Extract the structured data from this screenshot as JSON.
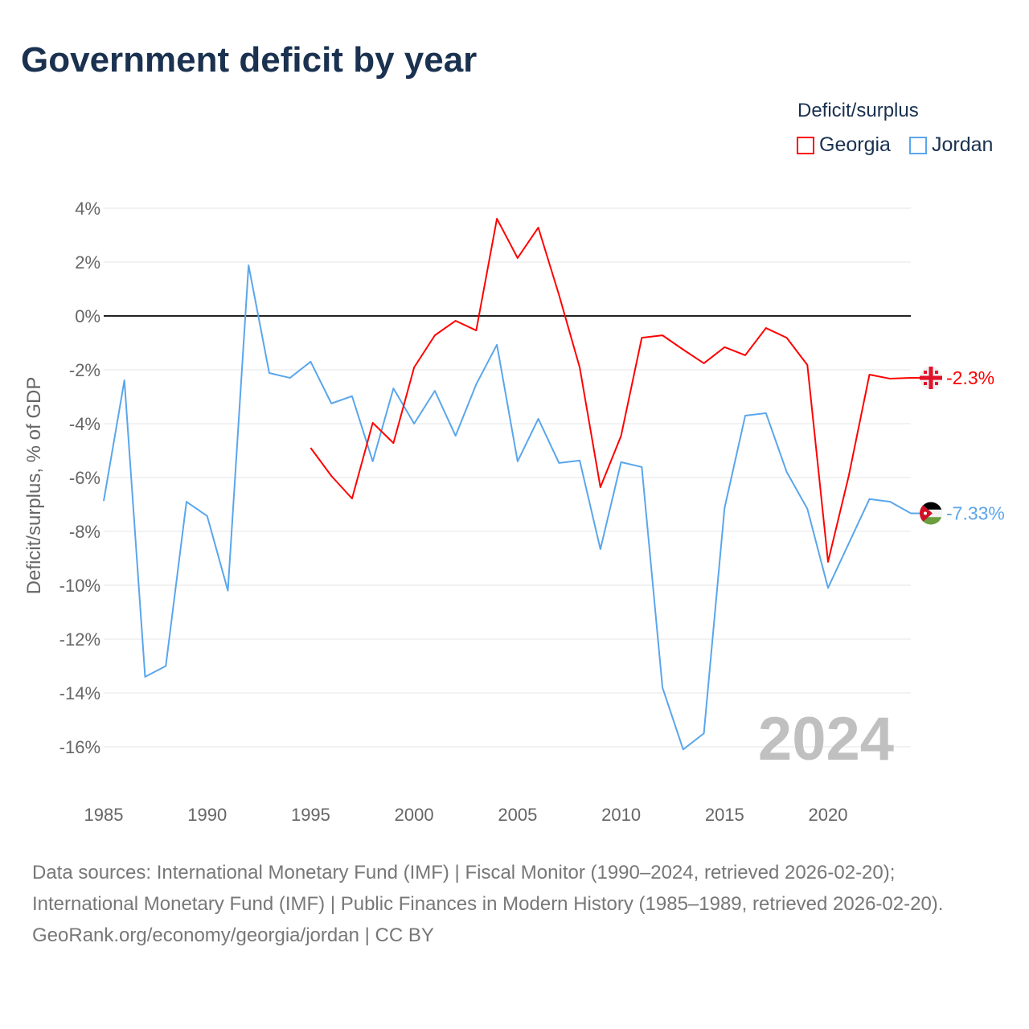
{
  "title": "Government deficit by year",
  "legend": {
    "title": "Deficit/surplus",
    "items": [
      {
        "name": "Georgia",
        "color": "#ff0000"
      },
      {
        "name": "Jordan",
        "color": "#5aa6ec"
      }
    ]
  },
  "sources": {
    "line1": "Data sources: International Monetary Fund (IMF) | Fiscal Monitor (1990–2024, retrieved 2026-02-20); International Monetary Fund (IMF) | Public Finances in Modern History (1985–1989, retrieved 2026-02-20).",
    "line2": "GeoRank.org/economy/georgia/jordan | CC BY"
  },
  "chart_data": {
    "type": "line",
    "title": "Government deficit by year",
    "xlabel": "",
    "ylabel": "Deficit/surplus, % of GDP",
    "xlim": [
      1985,
      2024
    ],
    "ylim": [
      -17,
      4
    ],
    "xticks": [
      1985,
      1990,
      1995,
      2000,
      2005,
      2010,
      2015,
      2020
    ],
    "yticks": [
      4,
      2,
      0,
      -2,
      -4,
      -6,
      -8,
      -10,
      -12,
      -14,
      -16
    ],
    "ytick_labels": [
      "4%",
      "2%",
      "0%",
      "-2%",
      "-4%",
      "-6%",
      "-8%",
      "-10%",
      "-12%",
      "-14%",
      "-16%"
    ],
    "year_watermark": "2024",
    "grid": true,
    "legend_position": "top-right",
    "series": [
      {
        "name": "Georgia",
        "color": "#ff0000",
        "end_label": "-2.3%",
        "flag": "georgia-flag",
        "x": [
          1995,
          1996,
          1997,
          1998,
          1999,
          2000,
          2001,
          2002,
          2003,
          2004,
          2005,
          2006,
          2007,
          2008,
          2009,
          2010,
          2011,
          2012,
          2013,
          2014,
          2015,
          2016,
          2017,
          2018,
          2019,
          2020,
          2021,
          2022,
          2023,
          2024
        ],
        "values": [
          -4.9,
          -5.94,
          -6.78,
          -3.97,
          -4.72,
          -1.91,
          -0.72,
          -0.18,
          -0.54,
          3.61,
          2.15,
          3.28,
          0.78,
          -1.91,
          -6.36,
          -4.45,
          -0.81,
          -0.72,
          -1.25,
          -1.76,
          -1.16,
          -1.46,
          -0.45,
          -0.81,
          -1.82,
          -9.13,
          -5.94,
          -2.18,
          -2.33,
          -2.3
        ]
      },
      {
        "name": "Jordan",
        "color": "#5aa6ec",
        "end_label": "-7.33%",
        "flag": "jordan-flag",
        "x": [
          1985,
          1986,
          1987,
          1988,
          1989,
          1990,
          1991,
          1992,
          1993,
          1994,
          1995,
          1996,
          1997,
          1998,
          1999,
          2000,
          2001,
          2002,
          2003,
          2004,
          2005,
          2006,
          2007,
          2008,
          2009,
          2010,
          2011,
          2012,
          2013,
          2014,
          2015,
          2016,
          2017,
          2018,
          2019,
          2020,
          2021,
          2022,
          2023,
          2024
        ],
        "values": [
          -6.87,
          -2.39,
          -13.4,
          -13.0,
          -6.9,
          -7.43,
          -10.2,
          1.88,
          -2.12,
          -2.3,
          -1.7,
          -3.25,
          -2.98,
          -5.4,
          -2.69,
          -4.0,
          -2.78,
          -4.45,
          -2.54,
          -1.07,
          -5.4,
          -3.82,
          -5.46,
          -5.37,
          -8.66,
          -5.43,
          -5.61,
          -13.8,
          -16.1,
          -15.5,
          -7.13,
          -3.7,
          -3.61,
          -5.79,
          -7.16,
          -10.1,
          -8.45,
          -6.8,
          -6.9,
          -7.33
        ]
      }
    ]
  }
}
